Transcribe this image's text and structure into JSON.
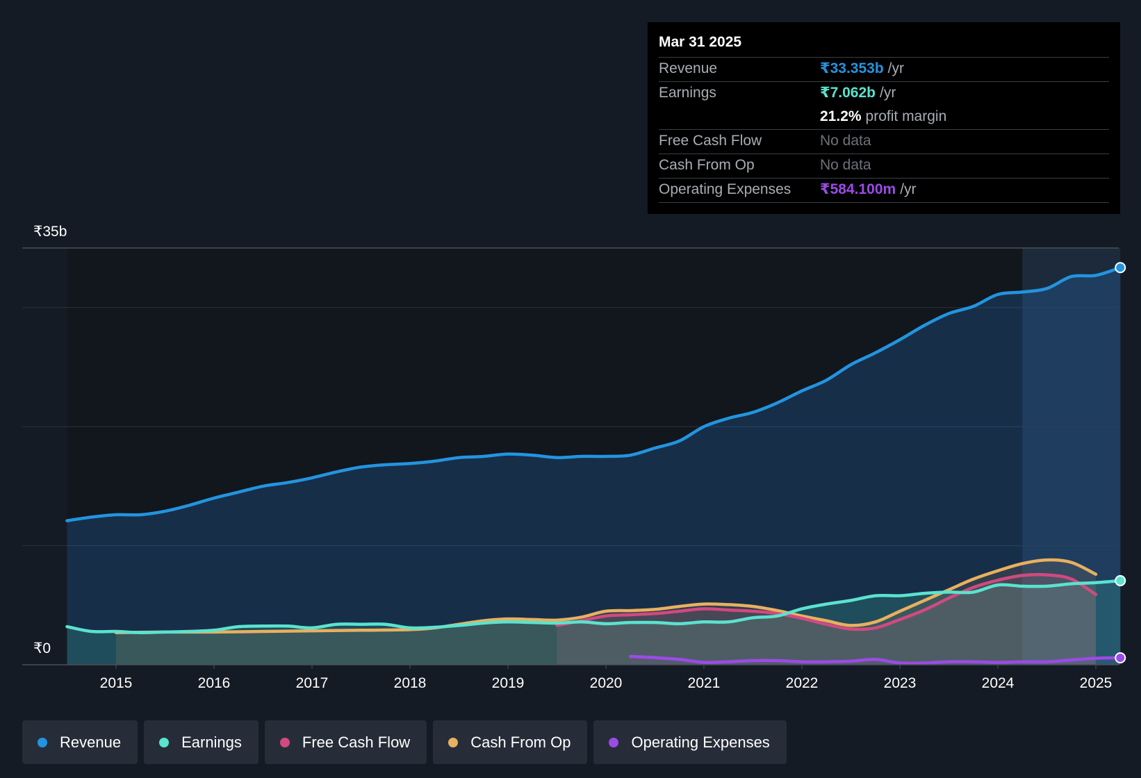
{
  "chart_data": {
    "type": "area",
    "title": "",
    "y_axis": {
      "top_label": "₹35b",
      "bottom_label": "₹0",
      "ylim": [
        0,
        35
      ],
      "unit": "₹b"
    },
    "x_axis": {
      "ticks": [
        "2015",
        "2016",
        "2017",
        "2018",
        "2019",
        "2020",
        "2021",
        "2022",
        "2023",
        "2024",
        "2025"
      ],
      "xlim": [
        2014.3,
        2025.25
      ]
    },
    "series": [
      {
        "name": "Revenue",
        "color": "#2394df",
        "points": [
          [
            2014.5,
            12.1
          ],
          [
            2014.75,
            12.4
          ],
          [
            2015.0,
            12.6
          ],
          [
            2015.25,
            12.6
          ],
          [
            2015.5,
            12.9
          ],
          [
            2015.75,
            13.4
          ],
          [
            2016.0,
            14.0
          ],
          [
            2016.25,
            14.5
          ],
          [
            2016.5,
            15.0
          ],
          [
            2016.75,
            15.3
          ],
          [
            2017.0,
            15.7
          ],
          [
            2017.25,
            16.2
          ],
          [
            2017.5,
            16.6
          ],
          [
            2017.75,
            16.8
          ],
          [
            2018.0,
            16.9
          ],
          [
            2018.25,
            17.1
          ],
          [
            2018.5,
            17.4
          ],
          [
            2018.75,
            17.5
          ],
          [
            2019.0,
            17.7
          ],
          [
            2019.25,
            17.6
          ],
          [
            2019.5,
            17.4
          ],
          [
            2019.75,
            17.5
          ],
          [
            2020.0,
            17.5
          ],
          [
            2020.25,
            17.6
          ],
          [
            2020.5,
            18.2
          ],
          [
            2020.75,
            18.8
          ],
          [
            2021.0,
            20.0
          ],
          [
            2021.25,
            20.7
          ],
          [
            2021.5,
            21.2
          ],
          [
            2021.75,
            22.0
          ],
          [
            2022.0,
            23.0
          ],
          [
            2022.25,
            23.9
          ],
          [
            2022.5,
            25.2
          ],
          [
            2022.75,
            26.2
          ],
          [
            2023.0,
            27.3
          ],
          [
            2023.25,
            28.5
          ],
          [
            2023.5,
            29.5
          ],
          [
            2023.75,
            30.1
          ],
          [
            2024.0,
            31.1
          ],
          [
            2024.25,
            31.3
          ],
          [
            2024.5,
            31.6
          ],
          [
            2024.75,
            32.6
          ],
          [
            2025.0,
            32.7
          ],
          [
            2025.25,
            33.353
          ]
        ]
      },
      {
        "name": "Earnings",
        "color": "#5ae3cf",
        "points": [
          [
            2014.5,
            3.2
          ],
          [
            2014.75,
            2.8
          ],
          [
            2015.0,
            2.8
          ],
          [
            2015.25,
            2.7
          ],
          [
            2015.5,
            2.75
          ],
          [
            2015.75,
            2.8
          ],
          [
            2016.0,
            2.9
          ],
          [
            2016.25,
            3.2
          ],
          [
            2016.5,
            3.25
          ],
          [
            2016.75,
            3.25
          ],
          [
            2017.0,
            3.1
          ],
          [
            2017.25,
            3.4
          ],
          [
            2017.5,
            3.4
          ],
          [
            2017.75,
            3.4
          ],
          [
            2018.0,
            3.1
          ],
          [
            2018.25,
            3.15
          ],
          [
            2018.5,
            3.3
          ],
          [
            2018.75,
            3.5
          ],
          [
            2019.0,
            3.6
          ],
          [
            2019.25,
            3.55
          ],
          [
            2019.5,
            3.5
          ],
          [
            2019.75,
            3.6
          ],
          [
            2020.0,
            3.45
          ],
          [
            2020.25,
            3.55
          ],
          [
            2020.5,
            3.55
          ],
          [
            2020.75,
            3.45
          ],
          [
            2021.0,
            3.6
          ],
          [
            2021.25,
            3.6
          ],
          [
            2021.5,
            3.95
          ],
          [
            2021.75,
            4.1
          ],
          [
            2022.0,
            4.7
          ],
          [
            2022.25,
            5.1
          ],
          [
            2022.5,
            5.4
          ],
          [
            2022.75,
            5.8
          ],
          [
            2023.0,
            5.8
          ],
          [
            2023.25,
            6.0
          ],
          [
            2023.5,
            6.1
          ],
          [
            2023.75,
            6.1
          ],
          [
            2024.0,
            6.7
          ],
          [
            2024.25,
            6.6
          ],
          [
            2024.5,
            6.6
          ],
          [
            2024.75,
            6.8
          ],
          [
            2025.0,
            6.9
          ],
          [
            2025.25,
            7.062
          ]
        ]
      },
      {
        "name": "Free Cash Flow",
        "color": "#d04a7f",
        "points": [
          [
            2019.5,
            3.3
          ],
          [
            2019.75,
            3.7
          ],
          [
            2020.0,
            4.1
          ],
          [
            2020.25,
            4.2
          ],
          [
            2020.5,
            4.3
          ],
          [
            2020.75,
            4.5
          ],
          [
            2021.0,
            4.7
          ],
          [
            2021.25,
            4.6
          ],
          [
            2021.5,
            4.5
          ],
          [
            2021.75,
            4.3
          ],
          [
            2022.0,
            3.9
          ],
          [
            2022.25,
            3.4
          ],
          [
            2022.5,
            3.0
          ],
          [
            2022.75,
            3.1
          ],
          [
            2023.0,
            3.8
          ],
          [
            2023.25,
            4.6
          ],
          [
            2023.5,
            5.6
          ],
          [
            2023.75,
            6.5
          ],
          [
            2024.0,
            7.1
          ],
          [
            2024.25,
            7.5
          ],
          [
            2024.5,
            7.55
          ],
          [
            2024.75,
            7.2
          ],
          [
            2025.0,
            5.9
          ]
        ]
      },
      {
        "name": "Cash From Op",
        "color": "#e8b060",
        "points": [
          [
            2015.0,
            2.7
          ],
          [
            2015.5,
            2.75
          ],
          [
            2016.0,
            2.75
          ],
          [
            2016.5,
            2.8
          ],
          [
            2017.0,
            2.85
          ],
          [
            2017.5,
            2.9
          ],
          [
            2018.0,
            2.95
          ],
          [
            2018.25,
            3.1
          ],
          [
            2018.5,
            3.4
          ],
          [
            2018.75,
            3.7
          ],
          [
            2019.0,
            3.85
          ],
          [
            2019.25,
            3.8
          ],
          [
            2019.5,
            3.75
          ],
          [
            2019.75,
            4.0
          ],
          [
            2020.0,
            4.5
          ],
          [
            2020.25,
            4.55
          ],
          [
            2020.5,
            4.65
          ],
          [
            2020.75,
            4.9
          ],
          [
            2021.0,
            5.1
          ],
          [
            2021.25,
            5.05
          ],
          [
            2021.5,
            4.9
          ],
          [
            2021.75,
            4.55
          ],
          [
            2022.0,
            4.1
          ],
          [
            2022.25,
            3.7
          ],
          [
            2022.5,
            3.3
          ],
          [
            2022.75,
            3.6
          ],
          [
            2023.0,
            4.5
          ],
          [
            2023.25,
            5.4
          ],
          [
            2023.5,
            6.3
          ],
          [
            2023.75,
            7.2
          ],
          [
            2024.0,
            7.9
          ],
          [
            2024.25,
            8.5
          ],
          [
            2024.5,
            8.8
          ],
          [
            2024.75,
            8.6
          ],
          [
            2025.0,
            7.6
          ]
        ]
      },
      {
        "name": "Operating Expenses",
        "color": "#9b4be6",
        "points": [
          [
            2020.25,
            0.7
          ],
          [
            2020.5,
            0.6
          ],
          [
            2020.75,
            0.45
          ],
          [
            2021.0,
            0.2
          ],
          [
            2021.25,
            0.25
          ],
          [
            2021.5,
            0.35
          ],
          [
            2021.75,
            0.35
          ],
          [
            2022.0,
            0.25
          ],
          [
            2022.25,
            0.25
          ],
          [
            2022.5,
            0.3
          ],
          [
            2022.75,
            0.45
          ],
          [
            2023.0,
            0.15
          ],
          [
            2023.25,
            0.15
          ],
          [
            2023.5,
            0.25
          ],
          [
            2023.75,
            0.25
          ],
          [
            2024.0,
            0.2
          ],
          [
            2024.25,
            0.25
          ],
          [
            2024.5,
            0.25
          ],
          [
            2024.75,
            0.4
          ],
          [
            2025.0,
            0.55
          ],
          [
            2025.25,
            0.584
          ]
        ]
      }
    ],
    "highlight_region": {
      "from": 2024.25,
      "to": 2025.25
    },
    "gridlines": [
      0,
      10,
      20,
      30,
      35
    ]
  },
  "tooltip": {
    "date": "Mar 31 2025",
    "revenue": {
      "label": "Revenue",
      "value": "₹33.353b",
      "unit": "/yr",
      "color": "#2394df"
    },
    "earnings": {
      "label": "Earnings",
      "value": "₹7.062b",
      "unit": "/yr",
      "color": "#5ae3cf"
    },
    "margin": {
      "value": "21.2%",
      "label": "profit margin"
    },
    "fcf": {
      "label": "Free Cash Flow",
      "value": "No data"
    },
    "cfo": {
      "label": "Cash From Op",
      "value": "No data"
    },
    "opex": {
      "label": "Operating Expenses",
      "value": "₹584.100m",
      "unit": "/yr",
      "color": "#9b4be6"
    }
  },
  "legend": [
    {
      "label": "Revenue",
      "color": "#2394df"
    },
    {
      "label": "Earnings",
      "color": "#5ae3cf"
    },
    {
      "label": "Free Cash Flow",
      "color": "#d04a7f"
    },
    {
      "label": "Cash From Op",
      "color": "#e8b060"
    },
    {
      "label": "Operating Expenses",
      "color": "#9b4be6"
    }
  ]
}
